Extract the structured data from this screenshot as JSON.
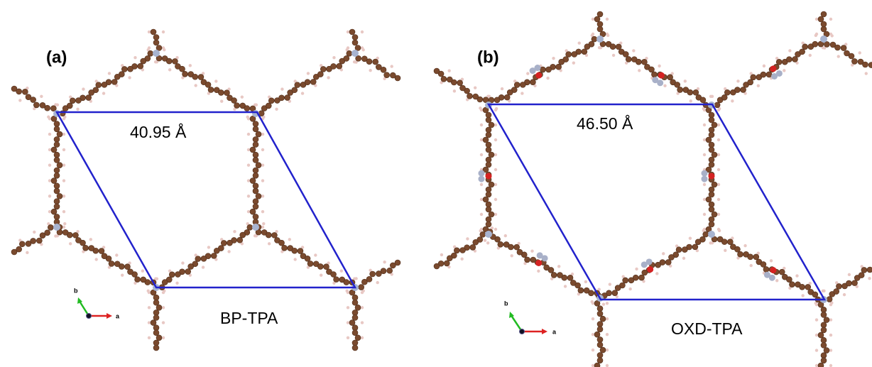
{
  "panels": [
    {
      "label": "(a)",
      "cell_length": "40.95 Å",
      "name": "BP-TPA",
      "axis_a": "a",
      "axis_b": "b"
    },
    {
      "label": "(b)",
      "cell_length": "46.50 Å",
      "name": "OXD-TPA",
      "axis_a": "a",
      "axis_b": "b"
    }
  ]
}
